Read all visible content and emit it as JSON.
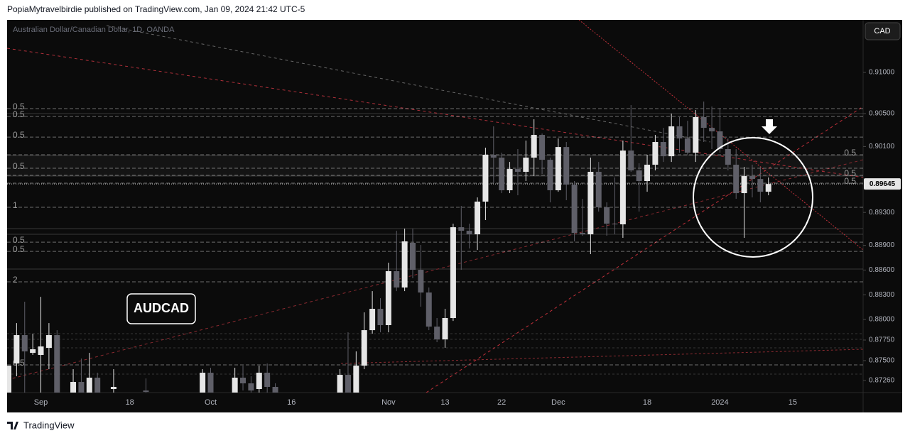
{
  "header": "PopiaMytravelbirdie published on TradingView.com, Jan 09, 2024 21:42 UTC-5",
  "footer": "TradingView",
  "chart_data": {
    "type": "candlestick",
    "title": "Australian Dollar/Canadian Dollar, 1D, OANDA",
    "currency": "CAD",
    "annotation": "AUDCAD",
    "up_color": "#e6e6e6",
    "down_color": "#5f5f68",
    "grid": false,
    "categories": [
      null,
      null,
      null,
      null,
      "Sep",
      null,
      null,
      null,
      null,
      null,
      null,
      null,
      null,
      null,
      null,
      "18",
      null,
      null,
      null,
      null,
      null,
      null,
      null,
      null,
      null,
      "Oct",
      null,
      null,
      null,
      null,
      null,
      null,
      null,
      null,
      null,
      "16",
      null,
      null,
      null,
      null,
      null,
      null,
      null,
      null,
      null,
      null,
      null,
      "Nov",
      null,
      null,
      null,
      null,
      null,
      null,
      "13",
      null,
      null,
      null,
      null,
      null,
      null,
      "22",
      null,
      null,
      null,
      null,
      null,
      null,
      "Dec",
      null,
      null,
      null,
      null,
      null,
      null,
      null,
      null,
      null,
      null,
      "18",
      null,
      null,
      null,
      null,
      null,
      null,
      null,
      null,
      "2024",
      null,
      null,
      null,
      null,
      null,
      null,
      null,
      null,
      "15",
      null,
      null,
      null,
      null,
      null,
      null,
      null,
      null
    ],
    "open": [
      0.87086,
      0.87465,
      0.8781,
      0.87594,
      0.87569,
      0.87655,
      0.8781,
      null,
      0.87086,
      0.87241,
      0.87086,
      0.87293,
      null,
      0.87155,
      null,
      null,
      null,
      0.87137,
      null,
      null,
      null,
      null,
      null,
      null,
      0.87086,
      0.87353,
      null,
      null,
      0.87086,
      0.87293,
      0.87224,
      0.87155,
      0.87353,
      0.87181,
      null,
      null,
      null,
      null,
      null,
      null,
      null,
      0.87086,
      0.87327,
      0.87086,
      0.87439,
      0.8787,
      0.88129,
      0.87931,
      0.88586,
      0.88388,
      0.88931,
      0.88603,
      0.88327,
      0.87913,
      0.87758,
      0.88017,
      0.8912,
      0.89077,
      0.89034,
      0.89431,
      0.9,
      0.89965,
      0.89569,
      0.89827,
      0.89793,
      0.89965,
      0.90241,
      0.89939,
      0.89569,
      0.90094,
      0.89638,
      0.89051,
      0.89034,
      0.89793,
      0.89362,
      0.89163,
      0.89155,
      0.90051,
      0.8981,
      0.89681,
      0.89879,
      0.90155,
      0.89982,
      0.90345,
      0.90198,
      0.90025,
      0.90457,
      0.90327,
      0.90284,
      0.90069,
      0.89879,
      0.89534,
      0.89741,
      0.89706,
      0.89551,
      null,
      null,
      null,
      null,
      null,
      null,
      null,
      null,
      null,
      null,
      null
    ],
    "high": [
      0.87439,
      0.87956,
      0.88215,
      0.87827,
      0.88275,
      0.87956,
      0.8787,
      null,
      0.87396,
      0.87525,
      0.87594,
      0.87353,
      null,
      0.87396,
      null,
      null,
      null,
      0.87284,
      null,
      null,
      null,
      null,
      null,
      null,
      0.87396,
      0.87413,
      null,
      null,
      0.87413,
      0.87439,
      0.8731,
      0.87439,
      0.87465,
      0.87224,
      null,
      null,
      null,
      null,
      null,
      null,
      null,
      0.87396,
      0.87844,
      0.87612,
      0.88086,
      0.88344,
      0.88258,
      0.88689,
      0.89077,
      0.89103,
      0.89103,
      0.88905,
      0.88388,
      0.88017,
      0.88129,
      0.89163,
      0.89379,
      0.89163,
      0.89482,
      0.90086,
      0.90345,
      0.90025,
      0.89913,
      0.90069,
      0.90172,
      0.90431,
      0.90258,
      0.89965,
      0.90198,
      0.90155,
      0.89681,
      0.89465,
      0.89965,
      0.89913,
      0.89422,
      0.89724,
      0.90172,
      0.90603,
      0.89896,
      0.9,
      0.90241,
      0.90327,
      0.905,
      0.90457,
      0.90413,
      0.90543,
      0.90646,
      0.90586,
      0.90569,
      0.90198,
      0.90069,
      0.89853,
      0.89879,
      0.89853,
      0.89724,
      null,
      null,
      null,
      null,
      null,
      null,
      null,
      null,
      null,
      null,
      null
    ],
    "low": [
      0.87051,
      0.8731,
      0.87086,
      0.87569,
      0.87094,
      0.87396,
      0.87008,
      null,
      0.87069,
      0.87051,
      0.87051,
      0.87051,
      null,
      0.87086,
      null,
      null,
      null,
      0.87069,
      null,
      null,
      null,
      null,
      null,
      null,
      0.87051,
      0.87069,
      null,
      null,
      0.87051,
      0.87137,
      0.87086,
      0.87112,
      0.87112,
      0.87051,
      null,
      null,
      null,
      null,
      null,
      null,
      null,
      0.87051,
      0.87051,
      0.87051,
      0.87396,
      0.87827,
      0.87844,
      0.87844,
      0.88344,
      0.88344,
      0.885,
      0.88155,
      0.8787,
      0.87724,
      0.87655,
      0.87982,
      0.88603,
      0.88862,
      0.88844,
      0.89207,
      0.89655,
      0.89534,
      0.89534,
      0.89508,
      0.89681,
      0.89741,
      0.89767,
      0.89422,
      0.89551,
      0.89448,
      0.88948,
      0.89017,
      0.88793,
      0.8931,
      0.89017,
      0.89034,
      0.88991,
      0.89793,
      0.8931,
      0.89551,
      0.8981,
      0.89913,
      0.89913,
      0.90025,
      0.9,
      0.89913,
      0.90155,
      0.90069,
      0.90025,
      0.8981,
      0.89465,
      0.88991,
      0.89482,
      0.89422,
      0.89508,
      null,
      null,
      null,
      null,
      null,
      null,
      null,
      null,
      null,
      null,
      null
    ],
    "close": [
      0.87439,
      0.8781,
      0.87612,
      0.87638,
      0.87672,
      0.8781,
      0.87051,
      null,
      0.87241,
      0.87086,
      0.87293,
      0.87086,
      null,
      0.87181,
      null,
      null,
      null,
      0.8712,
      null,
      null,
      null,
      null,
      null,
      null,
      0.87353,
      0.87086,
      null,
      null,
      0.87293,
      0.87224,
      0.87137,
      0.87353,
      0.87181,
      0.87086,
      null,
      null,
      null,
      null,
      null,
      null,
      null,
      0.87327,
      0.87086,
      0.87439,
      0.8787,
      0.88129,
      0.87931,
      0.88586,
      0.88388,
      0.88948,
      0.88603,
      0.88327,
      0.87913,
      0.87758,
      0.88017,
      0.8912,
      0.89077,
      0.89034,
      0.89431,
      0.9,
      0.89965,
      0.89569,
      0.89827,
      0.89793,
      0.89965,
      0.90241,
      0.89939,
      0.89569,
      0.90094,
      0.89638,
      0.89051,
      0.89034,
      0.89793,
      0.89362,
      0.89163,
      0.89155,
      0.90051,
      0.8981,
      0.89681,
      0.89879,
      0.90155,
      0.89982,
      0.90345,
      0.90198,
      0.90025,
      0.90457,
      0.90327,
      0.90284,
      0.90069,
      0.89879,
      0.89534,
      0.89741,
      0.89706,
      0.89551,
      0.89645,
      null,
      null,
      null,
      null,
      null,
      null,
      null,
      null,
      null,
      null,
      null
    ],
    "ylim": [
      0.87112,
      0.91638
    ],
    "yticks": [
      {
        "value": 0.91,
        "label": "0.91000"
      },
      {
        "value": 0.905,
        "label": "0.90500"
      },
      {
        "value": 0.901,
        "label": "0.90100"
      },
      {
        "value": 0.893,
        "label": "0.89300"
      },
      {
        "value": 0.889,
        "label": "0.88900"
      },
      {
        "value": 0.886,
        "label": "0.88600"
      },
      {
        "value": 0.883,
        "label": "0.88300"
      },
      {
        "value": 0.88,
        "label": "0.88000"
      },
      {
        "value": 0.8775,
        "label": "0.87750"
      },
      {
        "value": 0.875,
        "label": "0.87500"
      },
      {
        "value": 0.8726,
        "label": "0.87260"
      }
    ],
    "fib_levels": [
      {
        "value": 0.9056,
        "label": "0.5",
        "side": "left"
      },
      {
        "value": 0.90465,
        "label": "0.5",
        "side": "left"
      },
      {
        "value": 0.90215,
        "label": "0.5",
        "side": "left"
      },
      {
        "value": 0.89836,
        "label": "0.5",
        "side": "left"
      },
      {
        "value": 0.89362,
        "label": "1",
        "side": "left"
      },
      {
        "value": 0.88939,
        "label": "0.5",
        "side": "left"
      },
      {
        "value": 0.88827,
        "label": "0.5",
        "side": "left"
      },
      {
        "value": 0.88457,
        "label": "2",
        "side": "left"
      },
      {
        "value": 0.87448,
        "label": "0.5",
        "side": "left"
      },
      {
        "value": 0.9,
        "label": "0.5",
        "side": "right"
      },
      {
        "value": 0.8975,
        "label": "0.5",
        "side": "right"
      },
      {
        "value": 0.89655,
        "label": "0.5",
        "side": "right"
      }
    ]
  }
}
